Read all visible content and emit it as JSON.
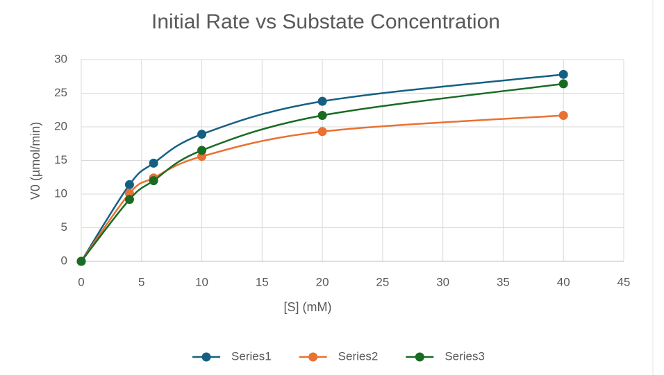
{
  "chart_data": {
    "type": "line",
    "title": "Initial Rate vs Substate Concentration",
    "x_label": "[S] (mM)",
    "y_label": "V0 (µmol/min)",
    "x": [
      0,
      4,
      6,
      10,
      20,
      40
    ],
    "series": [
      {
        "name": "Series1",
        "color": "#156082",
        "values": [
          0,
          11.4,
          14.6,
          18.9,
          23.8,
          27.8
        ]
      },
      {
        "name": "Series2",
        "color": "#e97132",
        "values": [
          0,
          10.1,
          12.4,
          15.6,
          19.3,
          21.7
        ]
      },
      {
        "name": "Series3",
        "color": "#196b24",
        "values": [
          0,
          9.2,
          12.0,
          16.5,
          21.7,
          26.4
        ]
      }
    ],
    "xlim": [
      0,
      45
    ],
    "xticks": [
      0,
      5,
      10,
      15,
      20,
      25,
      30,
      35,
      40,
      45
    ],
    "ylim": [
      0,
      30
    ],
    "yticks": [
      0,
      5,
      10,
      15,
      20,
      25,
      30
    ],
    "grid": true,
    "smooth": true,
    "legend": "bottom"
  }
}
